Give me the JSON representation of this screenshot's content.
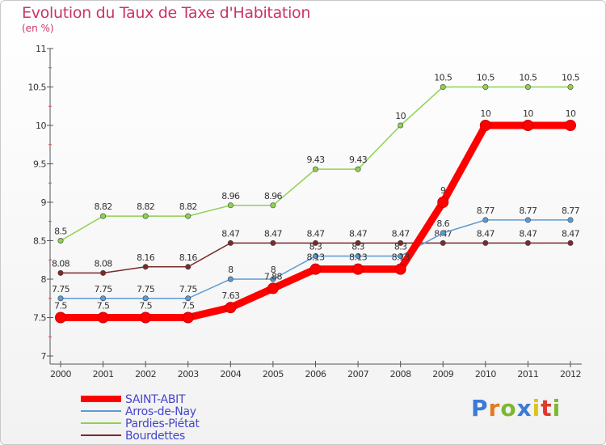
{
  "chart_data": {
    "type": "line",
    "title": "Evolution du Taux de Taxe d'Habitation",
    "subtitle": "(en %)",
    "x": [
      "2000",
      "2001",
      "2002",
      "2003",
      "2004",
      "2005",
      "2006",
      "2007",
      "2008",
      "2009",
      "2010",
      "2011",
      "2012"
    ],
    "ylim": [
      7,
      11
    ],
    "yticks": [
      "7",
      "7.5",
      "8",
      "8.5",
      "9",
      "9.5",
      "10",
      "10.5",
      "11"
    ],
    "grid": false,
    "legend_position": "bottom-left",
    "series": [
      {
        "name": "SAINT-ABIT",
        "color": "#ff0000",
        "values": [
          7.5,
          7.5,
          7.5,
          7.5,
          7.63,
          7.88,
          8.13,
          8.13,
          8.13,
          9,
          10,
          10,
          10
        ],
        "labels": [
          "7.5",
          "7.5",
          "7.5",
          "7.5",
          "7.63",
          "7.88",
          "8.13",
          "8.13",
          "8.13",
          "9",
          "10",
          "10",
          "10"
        ]
      },
      {
        "name": "Arros-de-Nay",
        "color": "#5b9bd5",
        "values": [
          7.75,
          7.75,
          7.75,
          7.75,
          8,
          8,
          8.3,
          8.3,
          8.3,
          8.6,
          8.77,
          8.77,
          8.77
        ],
        "labels": [
          "7.75",
          "7.75",
          "7.75",
          "7.75",
          "8",
          "8",
          "8.3",
          "8.3",
          "8.3",
          "8.6",
          "8.77",
          "8.77",
          "8.77"
        ]
      },
      {
        "name": "Pardies-Piétat",
        "color": "#8fd14f",
        "values": [
          8.5,
          8.82,
          8.82,
          8.82,
          8.96,
          8.96,
          9.43,
          9.43,
          10,
          10.5,
          10.5,
          10.5,
          10.5
        ],
        "labels": [
          "8.5",
          "8.82",
          "8.82",
          "8.82",
          "8.96",
          "8.96",
          "9.43",
          "9.43",
          "10",
          "10.5",
          "10.5",
          "10.5",
          "10.5"
        ]
      },
      {
        "name": "Bourdettes",
        "color": "#7b2a2a",
        "values": [
          8.08,
          8.08,
          8.16,
          8.16,
          8.47,
          8.47,
          8.47,
          8.47,
          8.47,
          8.47,
          8.47,
          8.47,
          8.47
        ],
        "labels": [
          "8.08",
          "8.08",
          "8.16",
          "8.16",
          "8.47",
          "8.47",
          "8.47",
          "8.47",
          "8.47",
          "8.47",
          "8.47",
          "8.47",
          "8.47"
        ]
      }
    ]
  },
  "logo": {
    "text": "Proxiti",
    "colors": [
      "#3a7bd5",
      "#e07a1f",
      "#7cb82f",
      "#3a7bd5",
      "#e0c21f",
      "#e0392b",
      "#7cb82f"
    ]
  }
}
